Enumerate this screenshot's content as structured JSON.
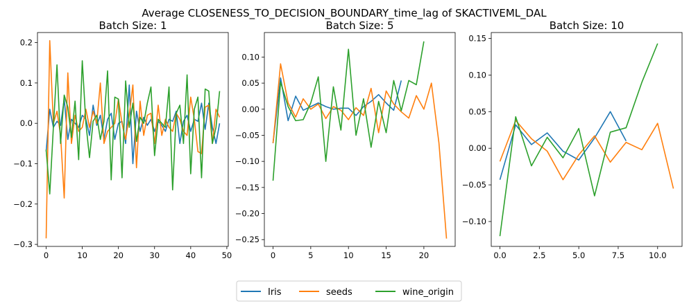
{
  "figure": {
    "suptitle": "Average CLOSENESS_TO_DECISION_BOUNDARY_time_lag of SKACTIVEML_DAL"
  },
  "legend": {
    "placement": "bottom-center",
    "entries": [
      {
        "label": "Iris",
        "color": "#1f77b4"
      },
      {
        "label": "seeds",
        "color": "#ff7f0e"
      },
      {
        "label": "wine_origin",
        "color": "#2ca02c"
      }
    ]
  },
  "chart_data": [
    {
      "type": "line",
      "title": "Batch Size: 1",
      "xlim": [
        -2.4,
        50.4
      ],
      "ylim": [
        -0.305,
        0.225
      ],
      "xticks": [
        0,
        10,
        20,
        30,
        40,
        50
      ],
      "xtick_labels": [
        "0",
        "10",
        "20",
        "30",
        "40",
        "50"
      ],
      "yticks": [
        -0.3,
        -0.2,
        -0.1,
        0.0,
        0.1,
        0.2
      ],
      "ytick_labels": [
        "−0.3",
        "−0.2",
        "−0.1",
        "0.0",
        "0.1",
        "0.2"
      ],
      "grid": false,
      "series": [
        {
          "name": "Iris",
          "color": "#1f77b4",
          "x": [
            0,
            1,
            2,
            3,
            4,
            5,
            6,
            7,
            8,
            9,
            10,
            11,
            12,
            13,
            14,
            15,
            16,
            17,
            18,
            19,
            20,
            21,
            22,
            23,
            24,
            25,
            26,
            27,
            28,
            29,
            30,
            31,
            32,
            33,
            34,
            35,
            36,
            37,
            38,
            39,
            40,
            41,
            42,
            43,
            44,
            45,
            46,
            47,
            48
          ],
          "y": [
            -0.07,
            0.035,
            -0.01,
            0.005,
            -0.005,
            0.06,
            -0.04,
            0.01,
            0.0,
            -0.01,
            0.02,
            0.01,
            -0.03,
            0.045,
            -0.005,
            0.02,
            -0.04,
            0.01,
            0.025,
            -0.04,
            0.0,
            0.005,
            -0.05,
            0.095,
            -0.1,
            0.03,
            -0.02,
            0.015,
            -0.005,
            0.01,
            -0.02,
            0.005,
            -0.005,
            -0.02,
            0.01,
            0.005,
            0.03,
            -0.05,
            0.005,
            0.02,
            -0.02,
            0.01,
            0.005,
            0.05,
            -0.015,
            0.05,
            -0.01,
            -0.05,
            0.0
          ]
        },
        {
          "name": "seeds",
          "color": "#ff7f0e",
          "x": [
            0,
            1,
            2,
            3,
            4,
            5,
            6,
            7,
            8,
            9,
            10,
            11,
            12,
            13,
            14,
            15,
            16,
            17,
            18,
            19,
            20,
            21,
            22,
            23,
            24,
            25,
            26,
            27,
            28,
            29,
            30,
            31,
            32,
            33,
            34,
            35,
            36,
            37,
            38,
            39,
            40,
            41,
            42,
            43,
            44,
            45,
            46,
            47,
            48
          ],
          "y": [
            -0.285,
            0.205,
            0.0,
            0.03,
            -0.03,
            -0.185,
            0.125,
            -0.05,
            0.02,
            -0.02,
            -0.01,
            0.035,
            -0.01,
            0.03,
            0.0,
            0.1,
            -0.05,
            -0.02,
            -0.01,
            0.0,
            0.06,
            0.0,
            -0.04,
            0.02,
            0.095,
            -0.11,
            0.055,
            -0.03,
            0.02,
            0.025,
            -0.05,
            0.045,
            -0.03,
            0.01,
            -0.01,
            -0.02,
            0.025,
            0.01,
            -0.02,
            -0.03,
            0.065,
            0.01,
            -0.07,
            -0.075,
            0.04,
            0.045,
            -0.05,
            0.035,
            0.015
          ]
        },
        {
          "name": "wine_origin",
          "color": "#2ca02c",
          "x": [
            0,
            1,
            2,
            3,
            4,
            5,
            6,
            7,
            8,
            9,
            10,
            11,
            12,
            13,
            14,
            15,
            16,
            17,
            18,
            19,
            20,
            21,
            22,
            23,
            24,
            25,
            26,
            27,
            28,
            29,
            30,
            31,
            32,
            33,
            34,
            35,
            36,
            37,
            38,
            39,
            40,
            41,
            42,
            43,
            44,
            45,
            46,
            47,
            48
          ],
          "y": [
            -0.065,
            -0.175,
            -0.01,
            0.145,
            -0.05,
            0.07,
            0.04,
            -0.035,
            0.055,
            -0.09,
            0.155,
            0.0,
            -0.085,
            0.005,
            0.02,
            -0.04,
            0.005,
            0.13,
            -0.14,
            0.065,
            0.06,
            -0.135,
            0.105,
            -0.01,
            0.05,
            -0.045,
            0.015,
            0.0,
            0.05,
            0.09,
            -0.08,
            0.01,
            0.0,
            -0.01,
            0.09,
            -0.165,
            0.025,
            0.045,
            -0.05,
            0.12,
            -0.125,
            0.035,
            0.065,
            -0.135,
            0.085,
            0.08,
            -0.05,
            -0.01,
            0.08
          ]
        }
      ]
    },
    {
      "type": "line",
      "title": "Batch Size: 5",
      "xlim": [
        -1.15,
        24.15
      ],
      "ylim": [
        -0.263,
        0.147
      ],
      "xticks": [
        0,
        5,
        10,
        15,
        20
      ],
      "xtick_labels": [
        "0",
        "5",
        "10",
        "15",
        "20"
      ],
      "yticks": [
        -0.25,
        -0.2,
        -0.15,
        -0.1,
        -0.05,
        0.0,
        0.05,
        0.1
      ],
      "ytick_labels": [
        "−0.25",
        "−0.20",
        "−0.15",
        "−0.10",
        "−0.05",
        "0.00",
        "0.05",
        "0.10"
      ],
      "grid": false,
      "series": [
        {
          "name": "Iris",
          "color": "#1f77b4",
          "x": [
            0,
            1,
            2,
            3,
            4,
            5,
            6,
            7,
            8,
            9,
            10,
            11,
            12,
            13,
            14,
            15,
            16,
            17
          ],
          "y": [
            -0.065,
            0.06,
            -0.022,
            0.025,
            -0.002,
            0.005,
            0.012,
            0.005,
            0.0,
            0.002,
            0.002,
            -0.012,
            0.005,
            0.015,
            0.028,
            0.012,
            -0.002,
            0.055
          ]
        },
        {
          "name": "seeds",
          "color": "#ff7f0e",
          "x": [
            0,
            1,
            2,
            3,
            4,
            5,
            6,
            7,
            8,
            9,
            10,
            11,
            12,
            13,
            14,
            15,
            16,
            17,
            18,
            19,
            20,
            21,
            22,
            23
          ],
          "y": [
            -0.065,
            0.087,
            0.012,
            -0.015,
            0.02,
            0.0,
            0.01,
            -0.018,
            0.005,
            -0.002,
            -0.02,
            0.003,
            -0.012,
            0.04,
            -0.045,
            0.035,
            0.01,
            -0.005,
            -0.017,
            0.026,
            0.0,
            0.05,
            -0.065,
            -0.248
          ]
        },
        {
          "name": "wine_origin",
          "color": "#2ca02c",
          "x": [
            0,
            1,
            2,
            3,
            4,
            5,
            6,
            7,
            8,
            9,
            10,
            11,
            12,
            13,
            14,
            15,
            16,
            17,
            18,
            19,
            20
          ],
          "y": [
            -0.137,
            0.052,
            0.005,
            -0.022,
            -0.02,
            0.012,
            0.062,
            -0.1,
            0.043,
            -0.04,
            0.115,
            -0.05,
            0.02,
            -0.073,
            0.015,
            -0.045,
            0.055,
            -0.003,
            0.055,
            0.047,
            0.13
          ]
        }
      ]
    },
    {
      "type": "line",
      "title": "Batch Size: 10",
      "xlim": [
        -0.55,
        11.55
      ],
      "ylim": [
        -0.134,
        0.158
      ],
      "xticks": [
        0,
        2.5,
        5,
        7.5,
        10
      ],
      "xtick_labels": [
        "0.0",
        "2.5",
        "5.0",
        "7.5",
        "10.0"
      ],
      "yticks": [
        -0.1,
        -0.05,
        0.0,
        0.05,
        0.1,
        0.15
      ],
      "ytick_labels": [
        "−0.10",
        "−0.05",
        "0.00",
        "0.05",
        "0.10",
        "0.15"
      ],
      "grid": false,
      "series": [
        {
          "name": "Iris",
          "color": "#1f77b4",
          "x": [
            0,
            1,
            2,
            3,
            4,
            5,
            6,
            7,
            8
          ],
          "y": [
            -0.043,
            0.032,
            0.005,
            0.021,
            -0.004,
            -0.016,
            0.014,
            0.05,
            0.01
          ]
        },
        {
          "name": "seeds",
          "color": "#ff7f0e",
          "x": [
            0,
            1,
            2,
            3,
            4,
            5,
            6,
            7,
            8,
            9,
            10,
            11
          ],
          "y": [
            -0.018,
            0.038,
            0.013,
            -0.004,
            -0.043,
            -0.009,
            0.017,
            -0.019,
            0.008,
            -0.002,
            0.034,
            -0.055
          ]
        },
        {
          "name": "wine_origin",
          "color": "#2ca02c",
          "x": [
            0,
            1,
            2,
            3,
            4,
            5,
            6,
            7,
            8,
            9,
            10
          ],
          "y": [
            -0.12,
            0.043,
            -0.024,
            0.015,
            -0.013,
            0.027,
            -0.065,
            0.022,
            0.028,
            0.09,
            0.143
          ]
        }
      ]
    }
  ]
}
